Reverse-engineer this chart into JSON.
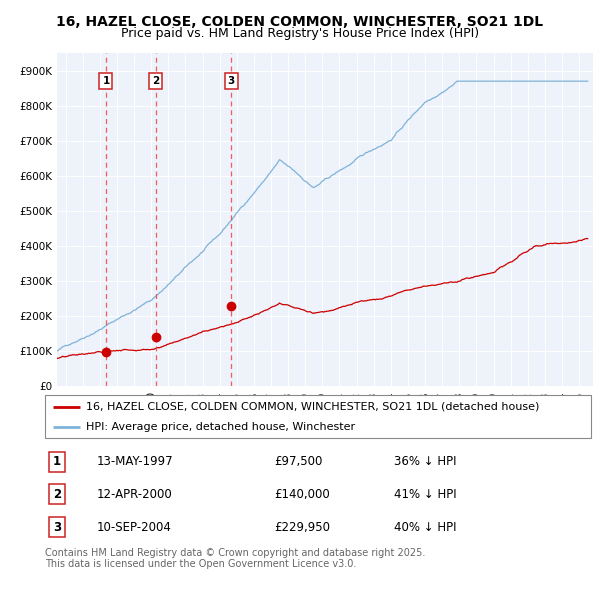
{
  "title": "16, HAZEL CLOSE, COLDEN COMMON, WINCHESTER, SO21 1DL",
  "subtitle": "Price paid vs. HM Land Registry's House Price Index (HPI)",
  "ylim": [
    0,
    950000
  ],
  "yticks": [
    0,
    100000,
    200000,
    300000,
    400000,
    500000,
    600000,
    700000,
    800000,
    900000
  ],
  "ytick_labels": [
    "£0",
    "£100K",
    "£200K",
    "£300K",
    "£400K",
    "£500K",
    "£600K",
    "£700K",
    "£800K",
    "£900K"
  ],
  "xlim_start": 1994.5,
  "xlim_end": 2025.8,
  "sale_dates": [
    1997.36,
    2000.28,
    2004.69
  ],
  "sale_prices": [
    97500,
    140000,
    229950
  ],
  "sale_labels": [
    "1",
    "2",
    "3"
  ],
  "sale_date_strs": [
    "13-MAY-1997",
    "12-APR-2000",
    "10-SEP-2004"
  ],
  "sale_price_strs": [
    "£97,500",
    "£140,000",
    "£229,950"
  ],
  "sale_hpi_strs": [
    "36% ↓ HPI",
    "41% ↓ HPI",
    "40% ↓ HPI"
  ],
  "red_line_color": "#cc0000",
  "blue_line_color": "#7fb3d9",
  "dashed_line_color": "#ee4444",
  "background_color": "#eef2fa",
  "grid_color": "#ffffff",
  "legend_label_red": "16, HAZEL CLOSE, COLDEN COMMON, WINCHESTER, SO21 1DL (detached house)",
  "legend_label_blue": "HPI: Average price, detached house, Winchester",
  "footer": "Contains HM Land Registry data © Crown copyright and database right 2025.\nThis data is licensed under the Open Government Licence v3.0.",
  "title_fontsize": 10,
  "subtitle_fontsize": 9,
  "tick_fontsize": 7.5,
  "legend_fontsize": 8,
  "table_fontsize": 8.5,
  "footer_fontsize": 7
}
